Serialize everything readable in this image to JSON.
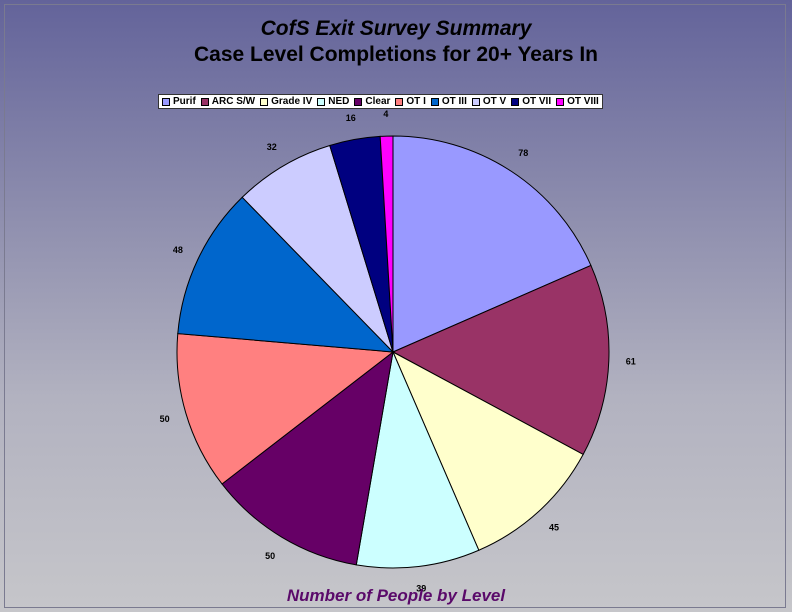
{
  "chart_data": {
    "type": "pie",
    "title": "CofS Exit Survey Summary",
    "subtitle": "Case Level Completions for 20+ Years In",
    "caption": "Number of People by Level",
    "legend_position": "top",
    "categories": [
      "Purif",
      "ARC S/W",
      "Grade IV",
      "NED",
      "Clear",
      "OT I",
      "OT III",
      "OT V",
      "OT VII",
      "OT VIII"
    ],
    "values": [
      78,
      61,
      45,
      39,
      50,
      50,
      48,
      32,
      16,
      4
    ],
    "colors": [
      "#9999ff",
      "#993366",
      "#ffffcc",
      "#ccffff",
      "#660066",
      "#ff8080",
      "#0066cc",
      "#ccccff",
      "#000080",
      "#ff00ff"
    ]
  }
}
